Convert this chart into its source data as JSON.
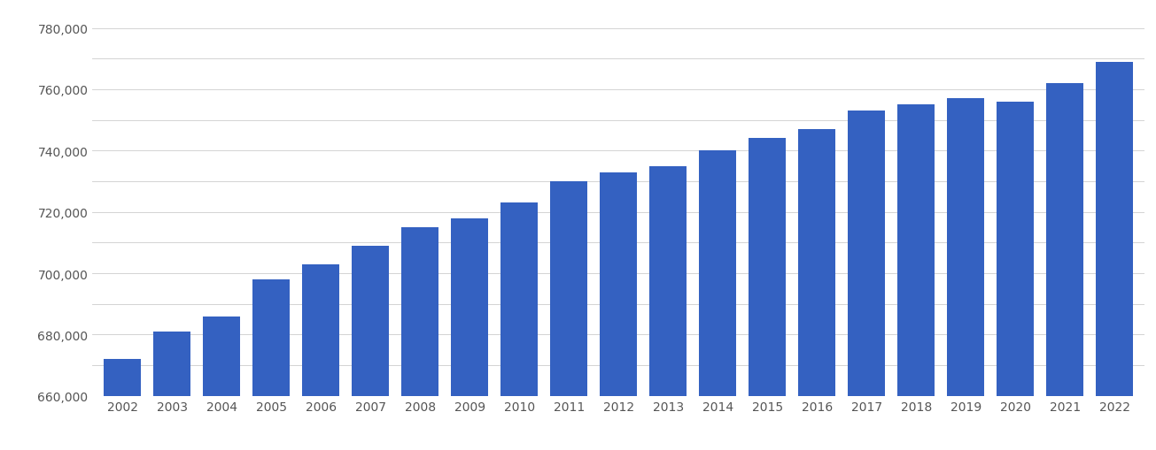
{
  "years": [
    2002,
    2003,
    2004,
    2005,
    2006,
    2007,
    2008,
    2009,
    2010,
    2011,
    2012,
    2013,
    2014,
    2015,
    2016,
    2017,
    2018,
    2019,
    2020,
    2021,
    2022
  ],
  "values": [
    672000,
    681000,
    686000,
    698000,
    703000,
    709000,
    715000,
    718000,
    723000,
    730000,
    733000,
    735000,
    740000,
    744000,
    747000,
    753000,
    755000,
    757000,
    756000,
    762000,
    769000
  ],
  "bar_color": "#3461C1",
  "ylim": [
    660000,
    785000
  ],
  "yticks": [
    660000,
    680000,
    700000,
    720000,
    740000,
    760000,
    780000
  ],
  "background_color": "#ffffff",
  "grid_color": "#cccccc",
  "tick_label_color": "#555555",
  "bar_width": 0.75
}
